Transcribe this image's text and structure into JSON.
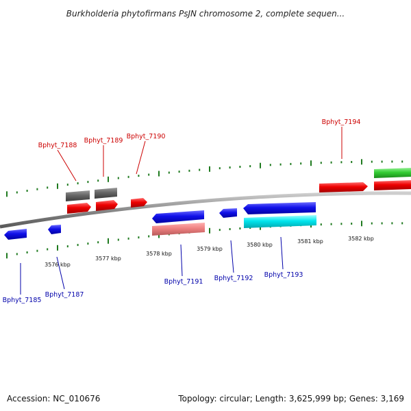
{
  "title": "Burkholderia phytofirmans PsJN chromosome 2, complete sequen...",
  "footer": {
    "accession": "Accession: NC_010676",
    "topology": "Topology: circular; Length: 3,625,999 bp; Genes: 3,169"
  },
  "axis": {
    "unit": "kbp",
    "ticks": [
      "3576 kbp",
      "3577 kbp",
      "3578 kbp",
      "3579 kbp",
      "3580 kbp",
      "3581 kbp",
      "3582 kbp"
    ]
  },
  "genes": {
    "top": [
      "Bphyt_7188",
      "Bphyt_7189",
      "Bphyt_7190",
      "Bphyt_7194"
    ],
    "bottom": [
      "Bphyt_7185",
      "Bphyt_7187",
      "Bphyt_7191",
      "Bphyt_7192",
      "Bphyt_7193"
    ]
  },
  "colors": {
    "top_label": "#cc0000",
    "bottom_label": "#0000aa",
    "tick": "#1f7a1f",
    "backbone": "#888888"
  }
}
